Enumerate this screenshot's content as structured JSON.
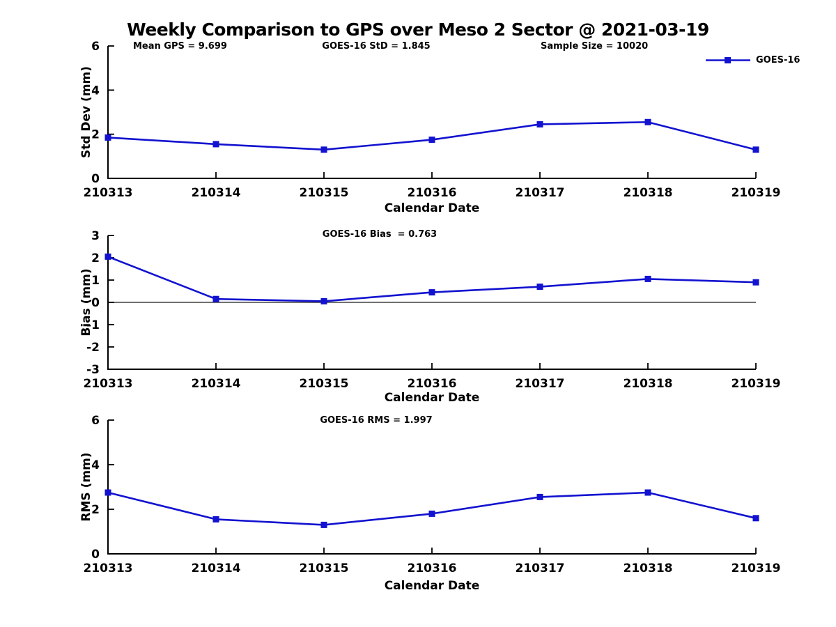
{
  "title": "Weekly Comparison to GPS over Meso 2 Sector @ 2021-03-19",
  "legend": {
    "label": "GOES-16"
  },
  "colors": {
    "series": "#1212d0",
    "axis": "#000000",
    "zero_line": "#1a1a1a",
    "text": "#000000",
    "background": "#ffffff"
  },
  "chart_data": [
    {
      "type": "line",
      "name": "std-dev-plot",
      "categories": [
        "210313",
        "210314",
        "210315",
        "210316",
        "210317",
        "210318",
        "210319"
      ],
      "series": [
        {
          "name": "GOES-16",
          "values": [
            1.85,
            1.55,
            1.3,
            1.75,
            2.45,
            2.55,
            1.3
          ],
          "marker": "square"
        }
      ],
      "xlabel": "Calendar Date",
      "ylabel": "Std Dev (mm)",
      "ylim": [
        0,
        6
      ],
      "yticks": [
        0,
        2,
        4,
        6
      ],
      "grid": false,
      "zero_line": false,
      "legend_position": "top-right",
      "annotations": [
        {
          "text": "Mean GPS = 9.699"
        },
        {
          "text": "GOES-16 StD = 1.845"
        },
        {
          "text": "Sample Size = 10020"
        }
      ]
    },
    {
      "type": "line",
      "name": "bias-plot",
      "categories": [
        "210313",
        "210314",
        "210315",
        "210316",
        "210317",
        "210318",
        "210319"
      ],
      "series": [
        {
          "name": "GOES-16",
          "values": [
            2.05,
            0.15,
            0.05,
            0.45,
            0.7,
            1.05,
            0.9
          ],
          "marker": "square"
        }
      ],
      "xlabel": "Calendar Date",
      "ylabel": "Bias (mm)",
      "ylim": [
        -3,
        3
      ],
      "yticks": [
        -3,
        -2,
        -1,
        0,
        1,
        2,
        3
      ],
      "grid": false,
      "zero_line": true,
      "annotations": [
        {
          "text": "GOES-16 Bias  = 0.763"
        }
      ]
    },
    {
      "type": "line",
      "name": "rms-plot",
      "categories": [
        "210313",
        "210314",
        "210315",
        "210316",
        "210317",
        "210318",
        "210319"
      ],
      "series": [
        {
          "name": "GOES-16",
          "values": [
            2.75,
            1.55,
            1.3,
            1.8,
            2.55,
            2.75,
            1.6
          ],
          "marker": "square"
        }
      ],
      "xlabel": "Calendar Date",
      "ylabel": "RMS (mm)",
      "ylim": [
        0,
        6
      ],
      "yticks": [
        0,
        2,
        4,
        6
      ],
      "grid": false,
      "zero_line": false,
      "annotations": [
        {
          "text": "GOES-16 RMS = 1.997"
        }
      ]
    }
  ]
}
